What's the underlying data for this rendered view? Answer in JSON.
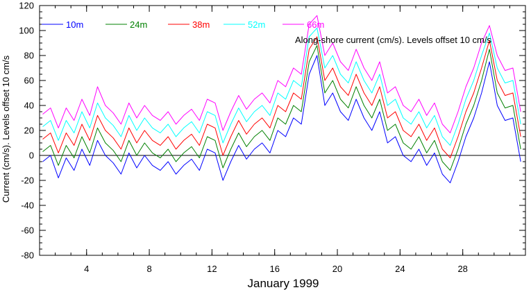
{
  "chart_data": {
    "type": "line",
    "title": "Along-shore current (cm/s). Levels offset 10 cm/s",
    "xlabel": "January 1999",
    "ylabel": "Current (cm/s). Levels offset 10 cm/s",
    "xlim": [
      1,
      32
    ],
    "ylim": [
      -80,
      120
    ],
    "x_ticks": [
      4,
      8,
      12,
      16,
      20,
      24,
      28
    ],
    "x_tick_labels": [
      "4",
      "8",
      "12",
      "16",
      "20",
      "24",
      "28"
    ],
    "y_ticks": [
      -80,
      -60,
      -40,
      -20,
      0,
      20,
      40,
      60,
      80,
      100,
      120
    ],
    "y_tick_labels": [
      "-80",
      "-60",
      "-40",
      "-20",
      "0",
      "20",
      "40",
      "60",
      "80",
      "100",
      "120"
    ],
    "zero_line": true,
    "grid": false,
    "legend_position": "top",
    "x": [
      1.2,
      1.7,
      2.2,
      2.7,
      3.2,
      3.7,
      4.2,
      4.7,
      5.2,
      5.7,
      6.2,
      6.7,
      7.2,
      7.7,
      8.2,
      8.7,
      9.2,
      9.7,
      10.2,
      10.7,
      11.2,
      11.7,
      12.2,
      12.7,
      13.2,
      13.7,
      14.2,
      14.7,
      15.2,
      15.7,
      16.2,
      16.7,
      17.2,
      17.7,
      18.2,
      18.7,
      19.2,
      19.7,
      20.2,
      20.7,
      21.2,
      21.7,
      22.2,
      22.7,
      23.2,
      23.7,
      24.2,
      24.7,
      25.2,
      25.7,
      26.2,
      26.7,
      27.2,
      27.7,
      28.2,
      28.7,
      29.2,
      29.7,
      30.2,
      30.7,
      31.2,
      31.7
    ],
    "series": [
      {
        "name": "10m",
        "color": "#0000ff",
        "values": [
          -5,
          0,
          -18,
          -2,
          -12,
          5,
          -8,
          12,
          0,
          -6,
          -15,
          2,
          -10,
          0,
          -8,
          -12,
          -5,
          -15,
          -8,
          -3,
          -12,
          5,
          2,
          -20,
          -5,
          8,
          -3,
          5,
          10,
          2,
          20,
          15,
          30,
          25,
          65,
          80,
          40,
          50,
          35,
          28,
          45,
          30,
          20,
          35,
          10,
          15,
          0,
          -5,
          5,
          -8,
          2,
          -15,
          -22,
          -5,
          15,
          30,
          50,
          75,
          40,
          28,
          30,
          -5
        ]
      },
      {
        "name": "24m",
        "color": "#008000",
        "values": [
          3,
          8,
          -8,
          8,
          -2,
          15,
          2,
          22,
          10,
          4,
          -5,
          12,
          0,
          10,
          2,
          -2,
          5,
          -5,
          2,
          7,
          -2,
          15,
          12,
          -10,
          5,
          18,
          7,
          15,
          20,
          12,
          30,
          25,
          40,
          35,
          75,
          88,
          50,
          60,
          45,
          38,
          55,
          40,
          30,
          45,
          20,
          25,
          10,
          5,
          15,
          2,
          12,
          -5,
          -12,
          5,
          25,
          40,
          60,
          85,
          50,
          38,
          40,
          5
        ]
      },
      {
        "name": "38m",
        "color": "#ff0000",
        "values": [
          13,
          18,
          2,
          18,
          8,
          25,
          12,
          32,
          20,
          14,
          5,
          22,
          10,
          20,
          12,
          8,
          15,
          5,
          12,
          17,
          8,
          25,
          22,
          0,
          15,
          28,
          17,
          25,
          30,
          22,
          40,
          35,
          50,
          45,
          85,
          95,
          60,
          70,
          55,
          48,
          65,
          50,
          40,
          55,
          30,
          35,
          20,
          15,
          25,
          12,
          22,
          5,
          -2,
          15,
          35,
          50,
          70,
          92,
          60,
          48,
          50,
          15
        ]
      },
      {
        "name": "52m",
        "color": "#00ffff",
        "values": [
          23,
          28,
          12,
          28,
          18,
          35,
          22,
          42,
          30,
          24,
          15,
          32,
          20,
          30,
          22,
          18,
          25,
          15,
          22,
          27,
          18,
          35,
          32,
          10,
          25,
          38,
          27,
          35,
          40,
          32,
          50,
          45,
          60,
          55,
          95,
          102,
          70,
          80,
          65,
          58,
          75,
          60,
          50,
          65,
          40,
          45,
          30,
          25,
          35,
          22,
          32,
          15,
          8,
          25,
          45,
          60,
          80,
          98,
          70,
          58,
          60,
          25
        ]
      },
      {
        "name": "66m",
        "color": "#ff00ff",
        "values": [
          33,
          38,
          22,
          38,
          28,
          45,
          32,
          55,
          40,
          34,
          25,
          42,
          30,
          40,
          32,
          28,
          35,
          25,
          32,
          37,
          28,
          45,
          42,
          20,
          35,
          48,
          37,
          45,
          50,
          42,
          60,
          55,
          70,
          65,
          105,
          112,
          80,
          90,
          75,
          68,
          85,
          70,
          60,
          75,
          50,
          55,
          40,
          35,
          45,
          32,
          42,
          25,
          18,
          35,
          55,
          70,
          90,
          104,
          80,
          68,
          70,
          35
        ]
      }
    ]
  }
}
